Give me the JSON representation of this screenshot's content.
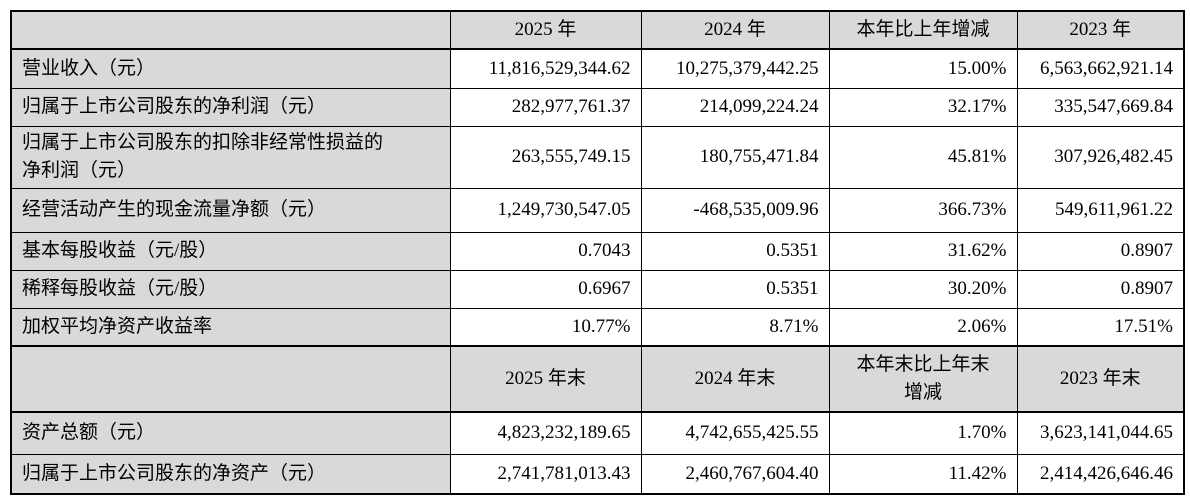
{
  "table": {
    "header_section1": {
      "corner": "",
      "cols": [
        "2025 年",
        "2024 年",
        "本年比上年增减",
        "2023 年"
      ]
    },
    "rows_section1": [
      {
        "label": "营业收入（元）",
        "values": [
          "11,816,529,344.62",
          "10,275,379,442.25",
          "15.00%",
          "6,563,662,921.14"
        ]
      },
      {
        "label": "归属于上市公司股东的净利润（元）",
        "values": [
          "282,977,761.37",
          "214,099,224.24",
          "32.17%",
          "335,547,669.84"
        ]
      },
      {
        "label": "归属于上市公司股东的扣除非经常性损益的\n净利润（元）",
        "values": [
          "263,555,749.15",
          "180,755,471.84",
          "45.81%",
          "307,926,482.45"
        ]
      },
      {
        "label": "经营活动产生的现金流量净额（元）",
        "values": [
          "1,249,730,547.05",
          "-468,535,009.96",
          "366.73%",
          "549,611,961.22"
        ]
      },
      {
        "label": "基本每股收益（元/股）",
        "values": [
          "0.7043",
          "0.5351",
          "31.62%",
          "0.8907"
        ]
      },
      {
        "label": "稀释每股收益（元/股）",
        "values": [
          "0.6967",
          "0.5351",
          "30.20%",
          "0.8907"
        ]
      },
      {
        "label": "加权平均净资产收益率",
        "values": [
          "10.77%",
          "8.71%",
          "2.06%",
          "17.51%"
        ]
      }
    ],
    "header_section2": {
      "corner": "",
      "cols": [
        "2025 年末",
        "2024 年末",
        "本年末比上年末\n增减",
        "2023 年末"
      ]
    },
    "rows_section2": [
      {
        "label": "资产总额（元）",
        "values": [
          "4,823,232,189.65",
          "4,742,655,425.55",
          "1.70%",
          "3,623,141,044.65"
        ]
      },
      {
        "label": "归属于上市公司股东的净资产（元）",
        "values": [
          "2,741,781,013.43",
          "2,460,767,604.40",
          "11.42%",
          "2,414,426,646.46"
        ]
      }
    ]
  },
  "colors": {
    "header_bg": "#d9d9d9",
    "border": "#000000",
    "text": "#000000"
  }
}
